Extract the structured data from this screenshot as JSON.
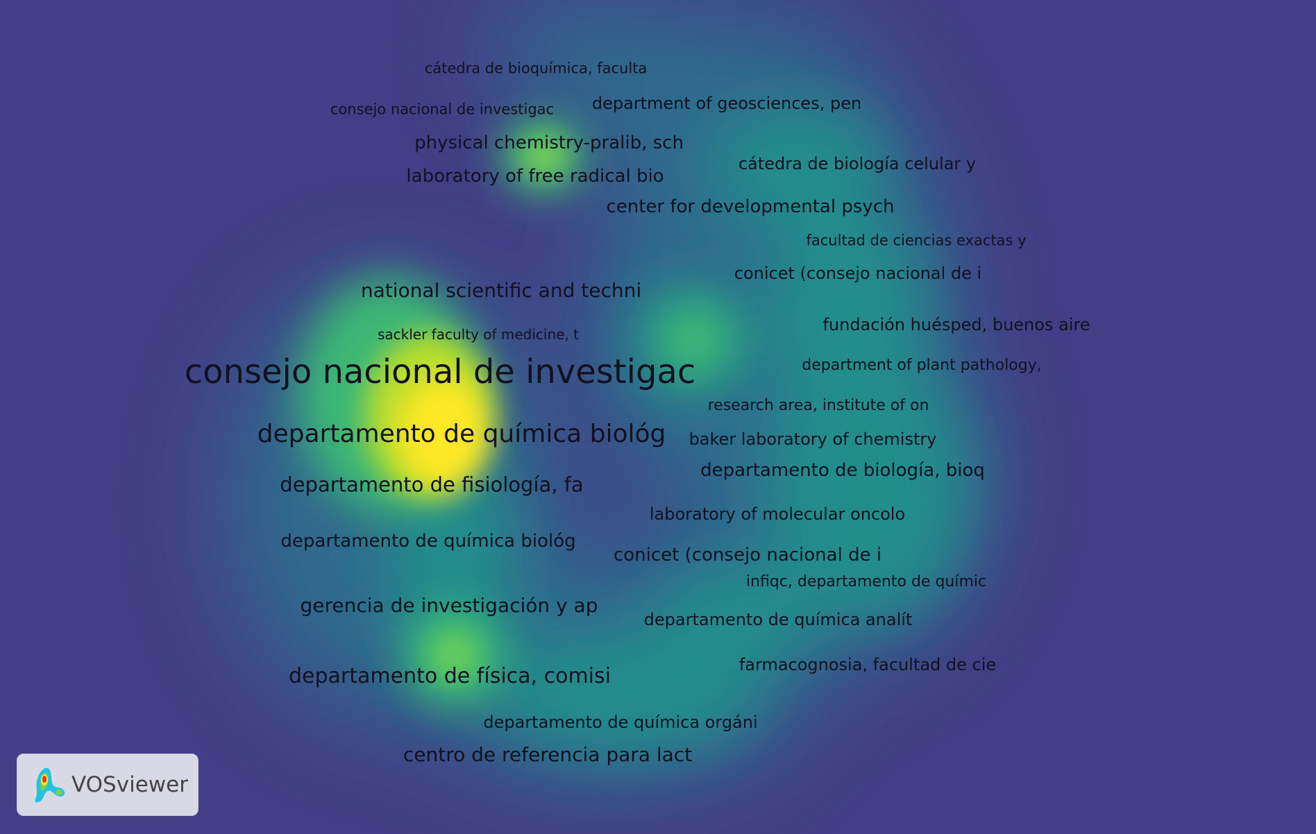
{
  "app": {
    "logo_text": "VOSviewer",
    "logo_icon": "vosviewer-logo-icon"
  },
  "colors": {
    "background": "#433e85",
    "density_low": "#2a788e",
    "density_mid": "#22a884",
    "density_high": "#7ad151",
    "density_peak": "#fde725",
    "label_text": "#111122"
  },
  "labels": [
    "cátedra de bioquímica, faculta",
    "consejo nacional de investigac",
    "department of geosciences, pen",
    "physical chemistry-pralib, sch",
    "laboratory of free radical bio",
    "cátedra de biología celular y",
    "center for developmental psych",
    "facultad de ciencias exactas y",
    "conicet (consejo nacional de i",
    "national scientific and techni",
    "fundación huésped, buenos aire",
    "sackler faculty of medicine, t",
    "consejo nacional de investigac",
    "department of plant pathology,",
    "research area, institute of on",
    "departamento de química biológ",
    "baker laboratory of chemistry",
    "departamento de biología, bioq",
    "departamento de fisiología, fa",
    "laboratory of molecular oncolo",
    "departamento de química biológ",
    "conicet (consejo nacional de i",
    "infiqc, departamento de químic",
    "gerencia de investigación y ap",
    "departamento de química analít",
    "farmacognosia, facultad de cie",
    "departamento de física, comisi",
    "departamento de química orgáni",
    "centro de referencia para lact"
  ]
}
